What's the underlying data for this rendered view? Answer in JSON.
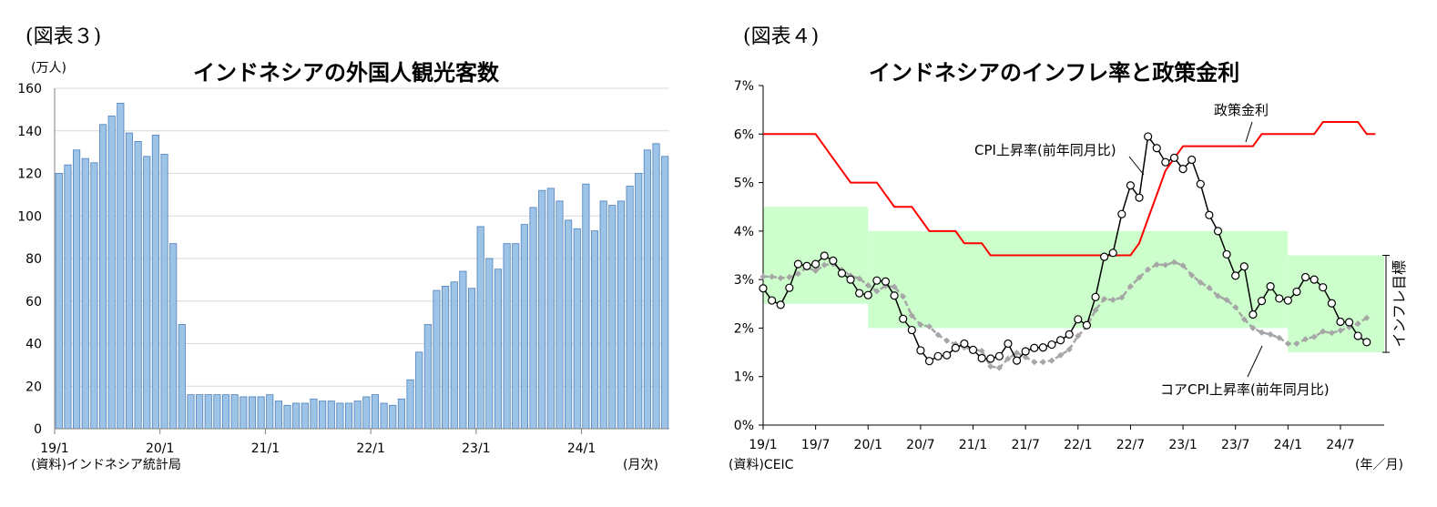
{
  "panels": {
    "left": {
      "fig_label": "(図表３)",
      "title": "インドネシアの外国人観光客数",
      "y_unit": "(万人)",
      "x_unit": "(月次)",
      "source": "(資料)インドネシア統計局"
    },
    "right": {
      "fig_label": "(図表４)",
      "title": "インドネシアのインフレ率と政策金利",
      "x_unit": "(年／月)",
      "source": "(資料)CEIC",
      "annotations": {
        "policy": "政策金利",
        "cpi": "CPI上昇率(前年同月比)",
        "core": "コアCPI上昇率(前年同月比)",
        "target": "インフレ目標"
      }
    }
  },
  "colors": {
    "bar_fill": "#9dc3e6",
    "bar_stroke": "#4f81bd",
    "policy_rate": "#ff0000",
    "cpi": "#000000",
    "core_cpi": "#a6a6a6",
    "target_band": "#ccffcc"
  },
  "chart_data": [
    {
      "type": "bar",
      "title": "インドネシアの外国人観光客数",
      "ylabel": "(万人)",
      "xlabel": "(月次)",
      "ylim": [
        0,
        160
      ],
      "yticks": [
        0,
        20,
        40,
        60,
        80,
        100,
        120,
        140,
        160
      ],
      "xtick_labels": [
        "19/1",
        "20/1",
        "21/1",
        "22/1",
        "23/1",
        "24/1"
      ],
      "grid": true,
      "start_month": "2019-01",
      "values": [
        120,
        124,
        131,
        127,
        125,
        143,
        147,
        153,
        139,
        135,
        128,
        138,
        129,
        87,
        49,
        16,
        16,
        16,
        16,
        16,
        16,
        15,
        15,
        15,
        16,
        13,
        11,
        12,
        12,
        14,
        13,
        13,
        12,
        12,
        13,
        15,
        16,
        12,
        11,
        14,
        23,
        36,
        49,
        65,
        67,
        69,
        74,
        66,
        95,
        80,
        75,
        87,
        87,
        96,
        104,
        112,
        113,
        107,
        98,
        94,
        115,
        93,
        107,
        105,
        107,
        114,
        120,
        131,
        134,
        128
      ],
      "series": [
        {
          "name": "",
          "values": []
        }
      ]
    },
    {
      "type": "line",
      "title": "インドネシアのインフレ率と政策金利",
      "xlabel": "(年／月)",
      "ylim": [
        0,
        7
      ],
      "yticks": [
        "0%",
        "1%",
        "2%",
        "3%",
        "4%",
        "5%",
        "6%",
        "7%"
      ],
      "xtick_labels": [
        "19/1",
        "19/7",
        "20/1",
        "20/7",
        "21/1",
        "21/7",
        "22/1",
        "22/7",
        "23/1",
        "23/7",
        "24/1",
        "24/7"
      ],
      "start_month": "2019-01",
      "target_band": [
        {
          "from": "2019-01",
          "to": "2019-12",
          "low": 2.5,
          "high": 4.5
        },
        {
          "from": "2020-01",
          "to": "2023-12",
          "low": 2.0,
          "high": 4.0
        },
        {
          "from": "2024-01",
          "to": "2024-11",
          "low": 1.5,
          "high": 3.5
        }
      ],
      "series": [
        {
          "name": "政策金利",
          "values": [
            6.0,
            6.0,
            6.0,
            6.0,
            6.0,
            6.0,
            6.0,
            5.75,
            5.5,
            5.25,
            5.0,
            5.0,
            5.0,
            5.0,
            4.75,
            4.5,
            4.5,
            4.5,
            4.25,
            4.0,
            4.0,
            4.0,
            4.0,
            3.75,
            3.75,
            3.75,
            3.5,
            3.5,
            3.5,
            3.5,
            3.5,
            3.5,
            3.5,
            3.5,
            3.5,
            3.5,
            3.5,
            3.5,
            3.5,
            3.5,
            3.5,
            3.5,
            3.5,
            3.75,
            4.25,
            4.75,
            5.25,
            5.5,
            5.75,
            5.75,
            5.75,
            5.75,
            5.75,
            5.75,
            5.75,
            5.75,
            5.75,
            6.0,
            6.0,
            6.0,
            6.0,
            6.0,
            6.0,
            6.0,
            6.25,
            6.25,
            6.25,
            6.25,
            6.25,
            6.0,
            6.0
          ]
        },
        {
          "name": "CPI上昇率(前年同月比)",
          "values": [
            2.82,
            2.57,
            2.48,
            2.83,
            3.32,
            3.28,
            3.32,
            3.49,
            3.39,
            3.13,
            3.0,
            2.72,
            2.68,
            2.98,
            2.96,
            2.67,
            2.19,
            1.96,
            1.54,
            1.32,
            1.42,
            1.44,
            1.59,
            1.68,
            1.55,
            1.38,
            1.37,
            1.42,
            1.68,
            1.33,
            1.52,
            1.59,
            1.6,
            1.66,
            1.75,
            1.87,
            2.18,
            2.06,
            2.64,
            3.47,
            3.55,
            4.35,
            4.94,
            4.69,
            5.95,
            5.71,
            5.42,
            5.51,
            5.28,
            5.47,
            4.97,
            4.33,
            4.0,
            3.52,
            3.08,
            3.27,
            2.28,
            2.56,
            2.86,
            2.61,
            2.57,
            2.75,
            3.05,
            3.0,
            2.84,
            2.51,
            2.13,
            2.12,
            1.84,
            1.71
          ]
        },
        {
          "name": "コアCPI上昇率(前年同月比)",
          "values": [
            3.06,
            3.06,
            3.03,
            3.05,
            3.12,
            3.25,
            3.18,
            3.3,
            3.32,
            3.2,
            3.08,
            3.02,
            2.88,
            2.76,
            2.87,
            2.85,
            2.65,
            2.26,
            2.07,
            2.03,
            1.86,
            1.74,
            1.67,
            1.6,
            1.56,
            1.53,
            1.21,
            1.18,
            1.37,
            1.49,
            1.4,
            1.3,
            1.3,
            1.33,
            1.44,
            1.56,
            1.84,
            2.03,
            2.37,
            2.6,
            2.58,
            2.63,
            2.86,
            3.04,
            3.21,
            3.31,
            3.3,
            3.36,
            3.29,
            3.09,
            2.94,
            2.83,
            2.66,
            2.58,
            2.43,
            2.18,
            2.0,
            1.91,
            1.87,
            1.8,
            1.68,
            1.68,
            1.77,
            1.82,
            1.93,
            1.9,
            1.95,
            2.02,
            2.09,
            2.21
          ]
        }
      ]
    }
  ]
}
